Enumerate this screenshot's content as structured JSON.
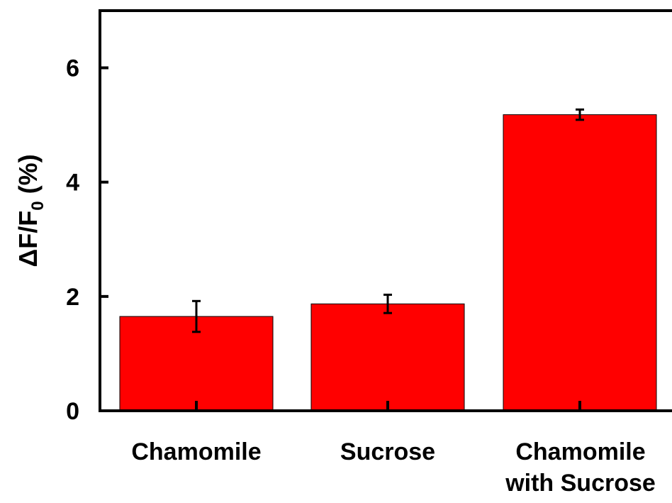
{
  "chart_data": {
    "type": "bar",
    "title": "",
    "xlabel": "",
    "ylabel": {
      "prefix": "ΔF/F",
      "subscript": "0",
      "suffix": " (%)"
    },
    "categories": [
      [
        "Chamomile"
      ],
      [
        "Sucrose"
      ],
      [
        "Chamomile",
        "with Sucrose"
      ]
    ],
    "values": [
      1.65,
      1.87,
      5.18
    ],
    "errors": [
      0.27,
      0.16,
      0.09
    ],
    "ylim": [
      0,
      7
    ],
    "yticks": [
      0,
      2,
      4,
      6
    ],
    "grid": false,
    "legend": "none",
    "colors": {
      "bar_fill": "#ff0000",
      "bar_stroke": "#000000",
      "axis": "#000000",
      "background": "#ffffff"
    }
  }
}
